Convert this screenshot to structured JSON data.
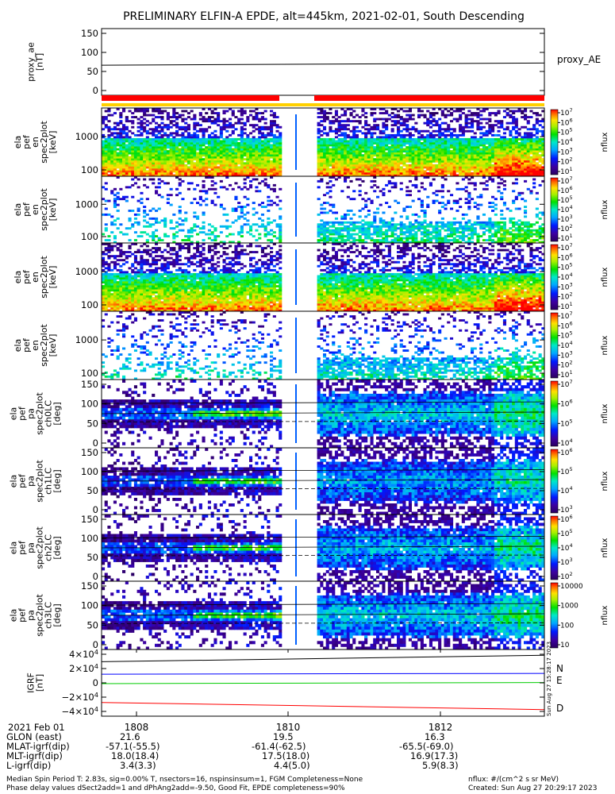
{
  "title": "PRELIMINARY ELFIN-A EPDE, alt=445km, 2021-02-01, South Descending",
  "chart_data": [
    {
      "type": "line",
      "id": "proxy",
      "ylabel": [
        "proxy_ae",
        "[nT]"
      ],
      "ylim": [
        0,
        150
      ],
      "yticks": [
        "150",
        "100",
        "50",
        "0"
      ],
      "series": [
        {
          "name": "proxy_AE",
          "values": [
            66,
            72
          ],
          "color": "#000000"
        }
      ]
    },
    {
      "type": "heatmap",
      "id": "en1",
      "ylabel": [
        "ela",
        "pef",
        "en",
        "spec2plot",
        "[keV]"
      ],
      "yticks": [
        "1000",
        "100"
      ],
      "cbar_ticks": [
        "10^7",
        "10^6",
        "10^5",
        "10^4",
        "10^3",
        "10^2",
        "10^1"
      ],
      "zlabel": "nflux"
    },
    {
      "type": "heatmap",
      "id": "en2",
      "ylabel": [
        "ela",
        "pef",
        "en",
        "spec2plot",
        "[keV]"
      ],
      "yticks": [
        "1000",
        "100"
      ],
      "cbar_ticks": [
        "10^7",
        "10^6",
        "10^5",
        "10^4",
        "10^3",
        "10^2",
        "10^1"
      ],
      "zlabel": "nflux"
    },
    {
      "type": "heatmap",
      "id": "en3",
      "ylabel": [
        "ela",
        "pef",
        "en",
        "spec2plot",
        "[keV]"
      ],
      "yticks": [
        "1000",
        "100"
      ],
      "cbar_ticks": [
        "10^7",
        "10^6",
        "10^5",
        "10^4",
        "10^3",
        "10^2",
        "10^1"
      ],
      "zlabel": "nflux"
    },
    {
      "type": "heatmap",
      "id": "en4",
      "ylabel": [
        "ela",
        "pef",
        "en",
        "spec2plot",
        "[keV]"
      ],
      "yticks": [
        "1000",
        "100"
      ],
      "cbar_ticks": [
        "10^7",
        "10^6",
        "10^5",
        "10^4",
        "10^3",
        "10^2",
        "10^1"
      ],
      "zlabel": "nflux"
    },
    {
      "type": "heatmap",
      "id": "pa0",
      "ylabel": [
        "ela",
        "pef",
        "pa",
        "spec2plot",
        "ch0LC",
        "[deg]"
      ],
      "ylim": [
        0,
        180
      ],
      "yticks": [
        "150",
        "100",
        "50",
        "0"
      ],
      "cbar_ticks": [
        "10^7",
        "10^6",
        "10^5",
        "10^4"
      ],
      "zlabel": "nflux"
    },
    {
      "type": "heatmap",
      "id": "pa1",
      "ylabel": [
        "ela",
        "pef",
        "pa",
        "spec2plot",
        "ch1LC",
        "[deg]"
      ],
      "ylim": [
        0,
        180
      ],
      "yticks": [
        "150",
        "100",
        "50",
        "0"
      ],
      "cbar_ticks": [
        "10^6",
        "10^5",
        "10^4",
        "10^3"
      ],
      "zlabel": "nflux"
    },
    {
      "type": "heatmap",
      "id": "pa2",
      "ylabel": [
        "ela",
        "pef",
        "pa",
        "spec2plot",
        "ch2LC",
        "[deg]"
      ],
      "ylim": [
        0,
        180
      ],
      "yticks": [
        "150",
        "100",
        "50",
        "0"
      ],
      "cbar_ticks": [
        "10^6",
        "10^5",
        "10^4",
        "10^3",
        "10^2"
      ],
      "zlabel": "nflux"
    },
    {
      "type": "heatmap",
      "id": "pa3",
      "ylabel": [
        "ela",
        "pef",
        "pa",
        "spec2plot",
        "ch3LC",
        "[deg]"
      ],
      "ylim": [
        0,
        180
      ],
      "yticks": [
        "150",
        "100",
        "50",
        "0"
      ],
      "cbar_ticks": [
        "10000",
        "1000",
        "100",
        "10"
      ],
      "zlabel": "nflux"
    },
    {
      "type": "line",
      "id": "igrf",
      "ylabel": [
        "IGRF",
        "[nT]"
      ],
      "ylim": [
        -40000,
        40000
      ],
      "yticks": [
        "4×10^4",
        "2×10^4",
        "0",
        "−2×10^4",
        "−4×10^4"
      ],
      "series": [
        {
          "name": "N",
          "values": [
            11500,
            12500
          ],
          "color": "#0000ff"
        },
        {
          "name": "E",
          "values": [
            -1000,
            400
          ],
          "color": "#00cc00"
        },
        {
          "name": "D",
          "values": [
            -26000,
            -35500
          ],
          "color": "#ff0000"
        },
        {
          "name": "",
          "values": [
            28000,
            36500
          ],
          "color": "#000000"
        }
      ]
    }
  ],
  "xaxis": {
    "ticks": [
      "1808",
      "1810",
      "1812"
    ]
  },
  "ephemeris": {
    "date": "2021 Feb 01",
    "rows": [
      {
        "label": "GLON (east)",
        "values": [
          "21.6",
          "19.5",
          "16.3"
        ]
      },
      {
        "label": "MLAT-igrf(dip)",
        "values": [
          "-57.1(-55.5)",
          "-61.4(-62.5)",
          "-65.5(-69.0)"
        ]
      },
      {
        "label": "MLT-igrf(dip)",
        "values": [
          "18.0(18.4)",
          "17.5(18.0)",
          "16.9(17.3)"
        ]
      },
      {
        "label": "L-igrf(dip)",
        "values": [
          "3.4(3.3)",
          "4.4(5.0)",
          "5.9(8.3)"
        ]
      }
    ]
  },
  "footer": {
    "line1": "Median Spin Period T: 2.83s, sig=0.00% T, nsectors=16, nspinsinsum=1, FGM Completeness=None",
    "line2": "Phase delay values dSect2add=1 and dPhAng2add=-9.50, Good Fit, EPDE completeness=90%",
    "units": "nflux: #/(cm^2 s sr MeV)",
    "created": "Created: Sun Aug 27 20:29:17 2023",
    "vertical_stamp": "Sun Aug 27 15:28:17 2023"
  },
  "colors": {
    "red": "#ff0000",
    "yellow": "#ffd000",
    "blue": "#0000ff",
    "green": "#00cc00"
  }
}
